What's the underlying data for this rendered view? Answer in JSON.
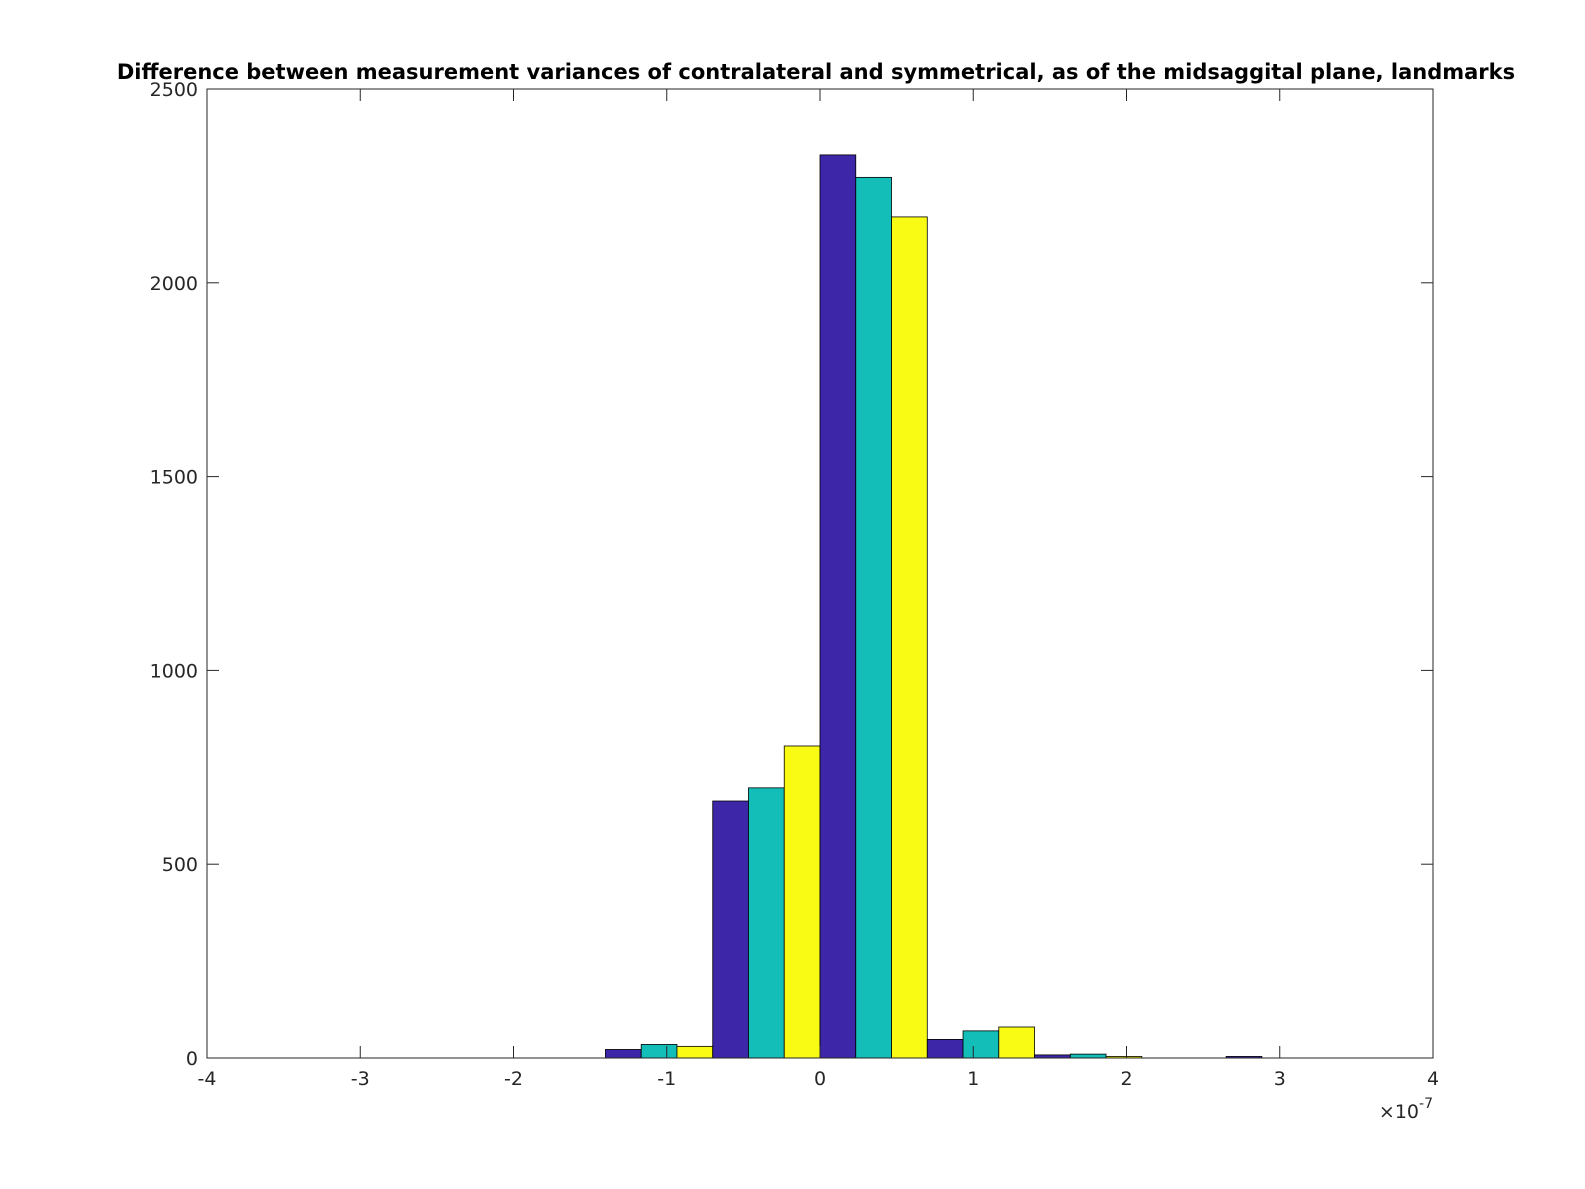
{
  "chart_data": {
    "type": "bar",
    "title": "Difference between measurement variances of contralateral and symmetrical, as of the midsaggital plane, landmarks",
    "xlabel": "",
    "ylabel": "",
    "x_multiplier_label": "×10",
    "x_multiplier_exponent": "-7",
    "xlim": [
      -4,
      4
    ],
    "ylim": [
      0,
      2500
    ],
    "xticks": [
      -4,
      -3,
      -2,
      -1,
      0,
      1,
      2,
      3,
      4
    ],
    "xtick_labels": [
      "-4",
      "-3",
      "-2",
      "-1",
      "0",
      "1",
      "2",
      "3",
      "4"
    ],
    "yticks": [
      0,
      500,
      1000,
      1500,
      2000,
      2500
    ],
    "ytick_labels": [
      "0",
      "500",
      "1000",
      "1500",
      "2000",
      "2500"
    ],
    "bin_width": 0.7,
    "categories": [
      -2.0,
      -1.05,
      -0.35,
      0.35,
      1.05,
      1.75,
      2.2,
      3.0
    ],
    "series": [
      {
        "color": "#3e26a8",
        "values": [
          0,
          22,
          663,
          2330,
          48,
          8,
          0,
          4
        ]
      },
      {
        "color": "#13beb8",
        "values": [
          0,
          35,
          697,
          2272,
          70,
          10,
          0,
          0
        ]
      },
      {
        "color": "#f9fb15",
        "values": [
          0,
          30,
          805,
          2170,
          80,
          4,
          0,
          0
        ]
      }
    ],
    "grid": false,
    "legend": "none"
  }
}
